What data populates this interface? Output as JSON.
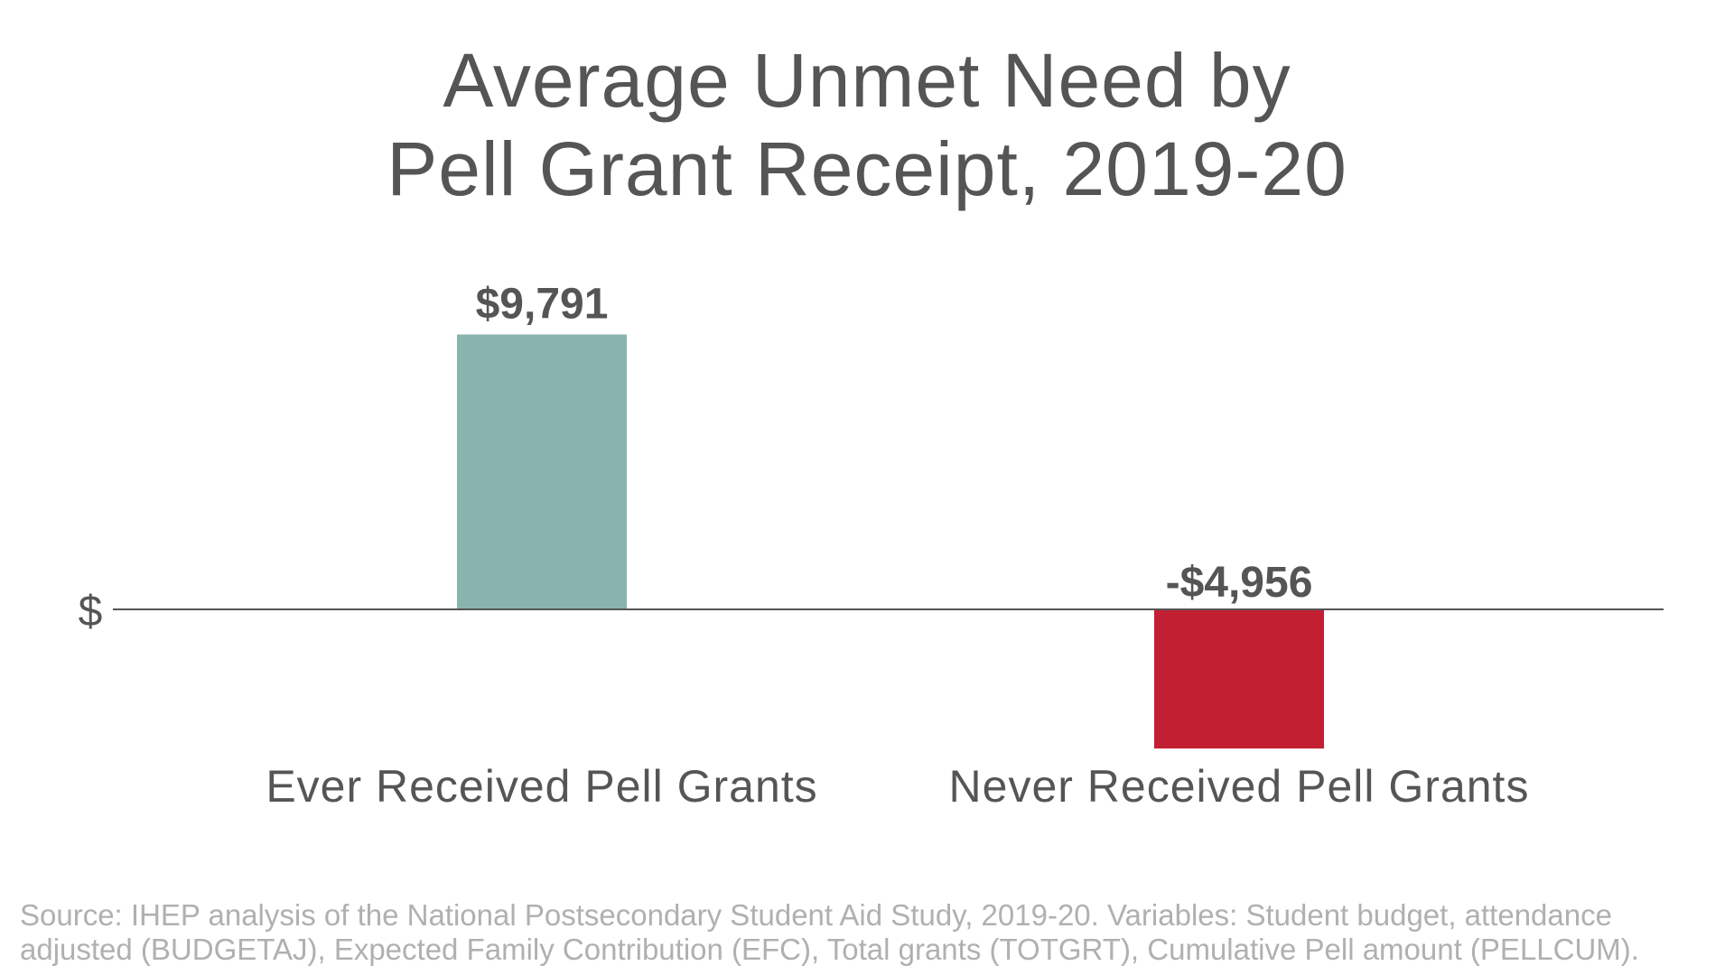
{
  "chart_data": {
    "type": "bar",
    "title_lines": [
      "Average Unmet Need by",
      "Pell Grant Receipt, 2019-20"
    ],
    "categories": [
      "Ever Received Pell Grants",
      "Never Received Pell Grants"
    ],
    "values": [
      9791,
      -4956
    ],
    "data_labels": [
      "$9,791",
      "-$4,956"
    ],
    "ytick_labels": [
      "$"
    ],
    "colors": [
      "#88b3af",
      "#c21f33"
    ],
    "axis_color": "#555555",
    "ylim": [
      -6000,
      11000
    ],
    "grid": false,
    "legend": "none"
  },
  "source": "Source: IHEP analysis of the National Postsecondary Student Aid Study, 2019-20. Variables: Student budget, attendance adjusted (BUDGETAJ), Expected Family Contribution (EFC), Total grants (TOTGRT), Cumulative Pell amount (PELLCUM)."
}
